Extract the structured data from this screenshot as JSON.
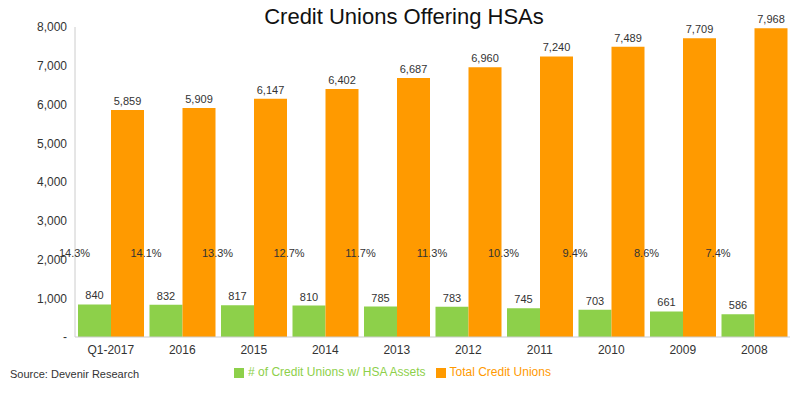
{
  "chart_data": {
    "type": "bar",
    "title": "Credit Unions Offering HSAs",
    "categories": [
      "Q1-2017",
      "2016",
      "2015",
      "2014",
      "2013",
      "2012",
      "2011",
      "2010",
      "2009",
      "2008"
    ],
    "series": [
      {
        "name": "# of Credit Unions w/ HSA Assets",
        "color": "#8DD04A",
        "values": [
          840,
          832,
          817,
          810,
          785,
          783,
          745,
          703,
          661,
          586
        ]
      },
      {
        "name": "Total Credit Unions",
        "color": "#FF9A00",
        "values": [
          5859,
          5909,
          6147,
          6402,
          6687,
          6960,
          7240,
          7489,
          7709,
          7968
        ],
        "value_labels": [
          "5,859",
          "5,909",
          "6,147",
          "6,402",
          "6,687",
          "6,960",
          "7,240",
          "7,489",
          "7,709",
          "7,968"
        ]
      }
    ],
    "ylim": [
      0,
      8000
    ],
    "yticks": [
      {
        "value": 0,
        "label": "-"
      },
      {
        "value": 1000,
        "label": "1,000"
      },
      {
        "value": 2000,
        "label": "2,000"
      },
      {
        "value": 3000,
        "label": "3,000"
      },
      {
        "value": 4000,
        "label": "4,000"
      },
      {
        "value": 5000,
        "label": "5,000"
      },
      {
        "value": 6000,
        "label": "6,000"
      },
      {
        "value": 7000,
        "label": "7,000"
      },
      {
        "value": 8000,
        "label": "8,000"
      }
    ],
    "grid": false,
    "legend": "bottom",
    "data_labels": true,
    "annotations": [
      "14.3%",
      "14.1%",
      "13.3%",
      "12.7%",
      "11.7%",
      "11.3%",
      "10.3%",
      "9.4%",
      "8.6%",
      "7.4%"
    ],
    "source": "Source: Devenir Research"
  }
}
